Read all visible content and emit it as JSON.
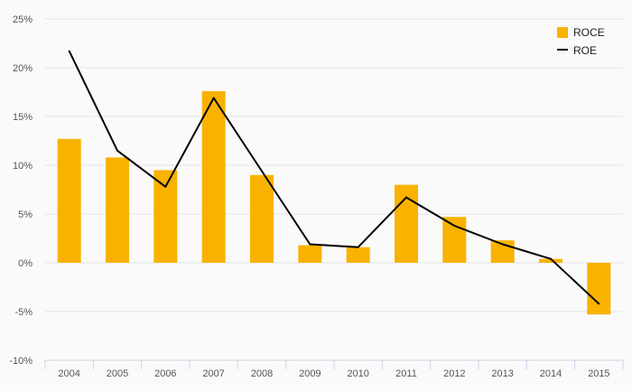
{
  "chart_data": {
    "type": "bar",
    "categories": [
      "2004",
      "2005",
      "2006",
      "2007",
      "2008",
      "2009",
      "2010",
      "2011",
      "2012",
      "2013",
      "2014",
      "2015"
    ],
    "series": [
      {
        "name": "ROCE",
        "type": "bar",
        "color": "#f9b200",
        "values": [
          12.7,
          10.8,
          9.5,
          17.6,
          9.0,
          1.8,
          1.6,
          8.0,
          4.7,
          2.3,
          0.4,
          -5.3
        ]
      },
      {
        "name": "ROE",
        "type": "line",
        "color": "#000000",
        "values": [
          21.7,
          11.5,
          7.8,
          16.9,
          9.4,
          1.9,
          1.6,
          6.7,
          3.8,
          1.9,
          0.4,
          -4.2
        ]
      }
    ],
    "ylim": [
      -10,
      25
    ],
    "yticks": [
      "25%",
      "20%",
      "15%",
      "10%",
      "5%",
      "0%",
      "-5%",
      "-10%"
    ],
    "grid": true,
    "legend_position": "top-right"
  }
}
